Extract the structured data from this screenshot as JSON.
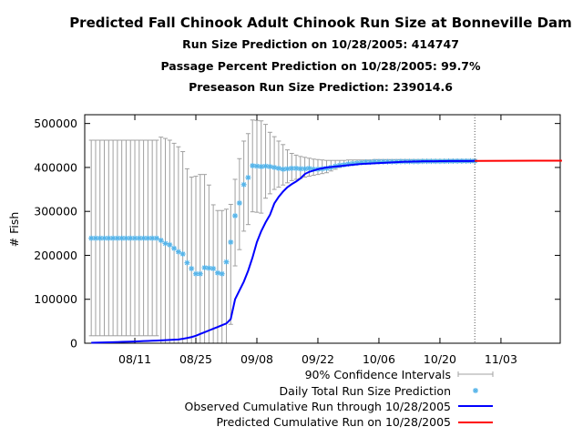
{
  "title": "Predicted Fall Chinook Adult Chinook Run Size at Bonneville Dam",
  "subtitles": [
    "Run Size Prediction on 10/28/2005: 414747",
    "Passage Percent Prediction on 10/28/2005: 99.7%",
    "Preseason Run Size Prediction: 239014.6"
  ],
  "colors": {
    "ci": "#a0a0a0",
    "daily": "#56b4e9",
    "observed": "#0000ff",
    "predicted": "#ff0000",
    "cutoff": "#555555"
  },
  "chart_data": {
    "type": "line",
    "title": "Predicted Fall Chinook Adult Chinook Run Size at Bonneville Dam",
    "xlabel": "",
    "ylabel": "# Fish",
    "x_unit": "days since 08/01/2005",
    "xlim": [
      -1.5,
      107.6
    ],
    "ylim": [
      0,
      520000
    ],
    "yticks": [
      0,
      100000,
      200000,
      300000,
      400000,
      500000
    ],
    "xticks": [
      {
        "day": 10,
        "label": "08/11"
      },
      {
        "day": 24,
        "label": "08/25"
      },
      {
        "day": 38,
        "label": "09/08"
      },
      {
        "day": 52,
        "label": "09/22"
      },
      {
        "day": 66,
        "label": "10/06"
      },
      {
        "day": 80,
        "label": "10/20"
      },
      {
        "day": 94,
        "label": "11/03"
      }
    ],
    "cutoff_day": 88,
    "legend_position": "bottom-center",
    "legend": [
      "90% Confidence Intervals",
      "Daily Total Run Size Prediction",
      "Observed Cumulative Run through 10/28/2005",
      "Predicted Cumulative Run on 10/28/2005"
    ],
    "daily_prediction": [
      239000,
      239000,
      239000,
      239000,
      239000,
      239000,
      239000,
      239000,
      239000,
      239000,
      239000,
      239000,
      239000,
      239000,
      239000,
      239000,
      234000,
      227000,
      224000,
      216000,
      208000,
      203000,
      183000,
      170000,
      158000,
      158000,
      172000,
      171000,
      170000,
      160000,
      158000,
      185000,
      230000,
      290000,
      319000,
      361000,
      377000,
      404000,
      403000,
      402000,
      403000,
      402000,
      400000,
      398000,
      396000,
      397000,
      398000,
      398000,
      397000,
      397000,
      398000,
      396000,
      396000,
      397000,
      398000,
      400000,
      403000,
      405000,
      406000,
      408000,
      409000,
      410000,
      411000,
      412000,
      412000,
      413000,
      413000,
      413000,
      413000,
      413000,
      413000,
      413500,
      413500,
      413500,
      413500,
      413500,
      414000,
      414000,
      414000,
      414000,
      414000,
      414200,
      414300,
      414400,
      414500,
      414500,
      414600,
      414700,
      414747
    ],
    "ci_upper": [
      462000,
      462000,
      462000,
      462000,
      462000,
      462000,
      462000,
      462000,
      462000,
      462000,
      462000,
      462000,
      462000,
      462000,
      462000,
      462000,
      469000,
      466000,
      462000,
      455000,
      447000,
      436000,
      397000,
      378000,
      380000,
      384000,
      384000,
      360000,
      315000,
      302000,
      302000,
      305000,
      316000,
      373000,
      420000,
      460000,
      477000,
      508000,
      507000,
      506000,
      498000,
      480000,
      470000,
      460000,
      452000,
      440000,
      432000,
      428000,
      425000,
      423000,
      421000,
      419000,
      418000,
      417000,
      416000,
      416000,
      416000,
      416000,
      416000,
      417000,
      417000,
      417000,
      417000,
      417000,
      417000,
      418000,
      418000,
      418000,
      418000,
      418000,
      418000,
      418000,
      418000,
      418000,
      418000,
      418000,
      418000,
      418000,
      418000,
      418000,
      418000,
      418000,
      418000,
      418000,
      418000,
      418000,
      418000,
      418000,
      418000
    ],
    "ci_lower": [
      17000,
      17000,
      17000,
      17000,
      17000,
      17000,
      17000,
      17000,
      17000,
      17000,
      17000,
      17000,
      17000,
      17000,
      17000,
      17000,
      0,
      0,
      0,
      0,
      0,
      0,
      0,
      0,
      0,
      0,
      0,
      0,
      0,
      0,
      0,
      0,
      43000,
      176000,
      213000,
      255000,
      270000,
      299000,
      298000,
      296000,
      330000,
      340000,
      350000,
      355000,
      360000,
      365000,
      370000,
      373000,
      375000,
      378000,
      380000,
      382000,
      384000,
      386000,
      388000,
      392000,
      396000,
      400000,
      403000,
      405000,
      406000,
      407000,
      408000,
      409000,
      410000,
      411000,
      411000,
      411000,
      411000,
      411000,
      411000,
      411000,
      411000,
      411000,
      411000,
      411000,
      411000,
      412000,
      412000,
      412000,
      412000,
      412000,
      412000,
      412000,
      412000,
      412000,
      412000,
      412000,
      412000
    ],
    "observed_cumulative": [
      1000,
      1200,
      1500,
      1800,
      2000,
      2300,
      2600,
      3000,
      3300,
      3600,
      4000,
      4400,
      4800,
      5200,
      5600,
      6000,
      6500,
      7000,
      7500,
      8000,
      8500,
      10000,
      12000,
      14000,
      17000,
      21000,
      25000,
      29000,
      33000,
      37000,
      41000,
      45000,
      55000,
      100000,
      120000,
      140000,
      165000,
      195000,
      230000,
      255000,
      275000,
      292000,
      318000,
      333000,
      345000,
      355000,
      362000,
      368000,
      375000,
      385000,
      390000,
      393000,
      396000,
      398000,
      400000,
      401000,
      402000,
      403000,
      404000,
      405000,
      406000,
      407000,
      408000,
      408500,
      409000,
      409500,
      410000,
      410500,
      411000,
      411500,
      412000,
      412500,
      413000,
      413000,
      413500,
      413500,
      414000,
      414000,
      414000,
      414200,
      414300,
      414400,
      414500,
      414500,
      414600,
      414600,
      414700,
      414700,
      414747
    ],
    "predicted_cumulative": {
      "days": [
        88,
        95,
        102,
        108
      ],
      "values": [
        414747,
        415000,
        415300,
        415500
      ]
    }
  }
}
